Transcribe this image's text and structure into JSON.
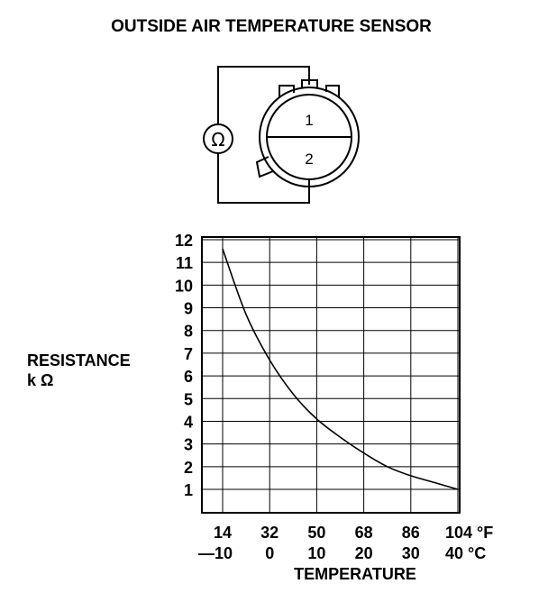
{
  "title": "OUTSIDE AIR TEMPERATURE SENSOR",
  "diagram": {
    "meter_symbol": "Ω",
    "terminals": [
      "1",
      "2"
    ]
  },
  "chart_data": {
    "type": "line",
    "title": "",
    "ylabel_line1": "RESISTANCE",
    "ylabel_line2": "k Ω",
    "xlabel": "TEMPERATURE",
    "y_ticks": [
      "1",
      "2",
      "3",
      "4",
      "5",
      "6",
      "7",
      "8",
      "9",
      "10",
      "11",
      "12"
    ],
    "x_ticks_f": [
      "14",
      "32",
      "50",
      "68",
      "86",
      "104 °F"
    ],
    "x_ticks_c": [
      "—10",
      "0",
      "10",
      "20",
      "30",
      "40 °C"
    ],
    "xlim_c": [
      -10,
      40
    ],
    "ylim": [
      0,
      12
    ],
    "grid": true,
    "series": [
      {
        "x": [
          -10,
          -5,
          0,
          5,
          10,
          15,
          20,
          25,
          30,
          35,
          40
        ],
        "y": [
          11.6,
          8.7,
          6.7,
          5.2,
          4.1,
          3.3,
          2.6,
          2.0,
          1.6,
          1.3,
          1.0
        ]
      }
    ]
  }
}
